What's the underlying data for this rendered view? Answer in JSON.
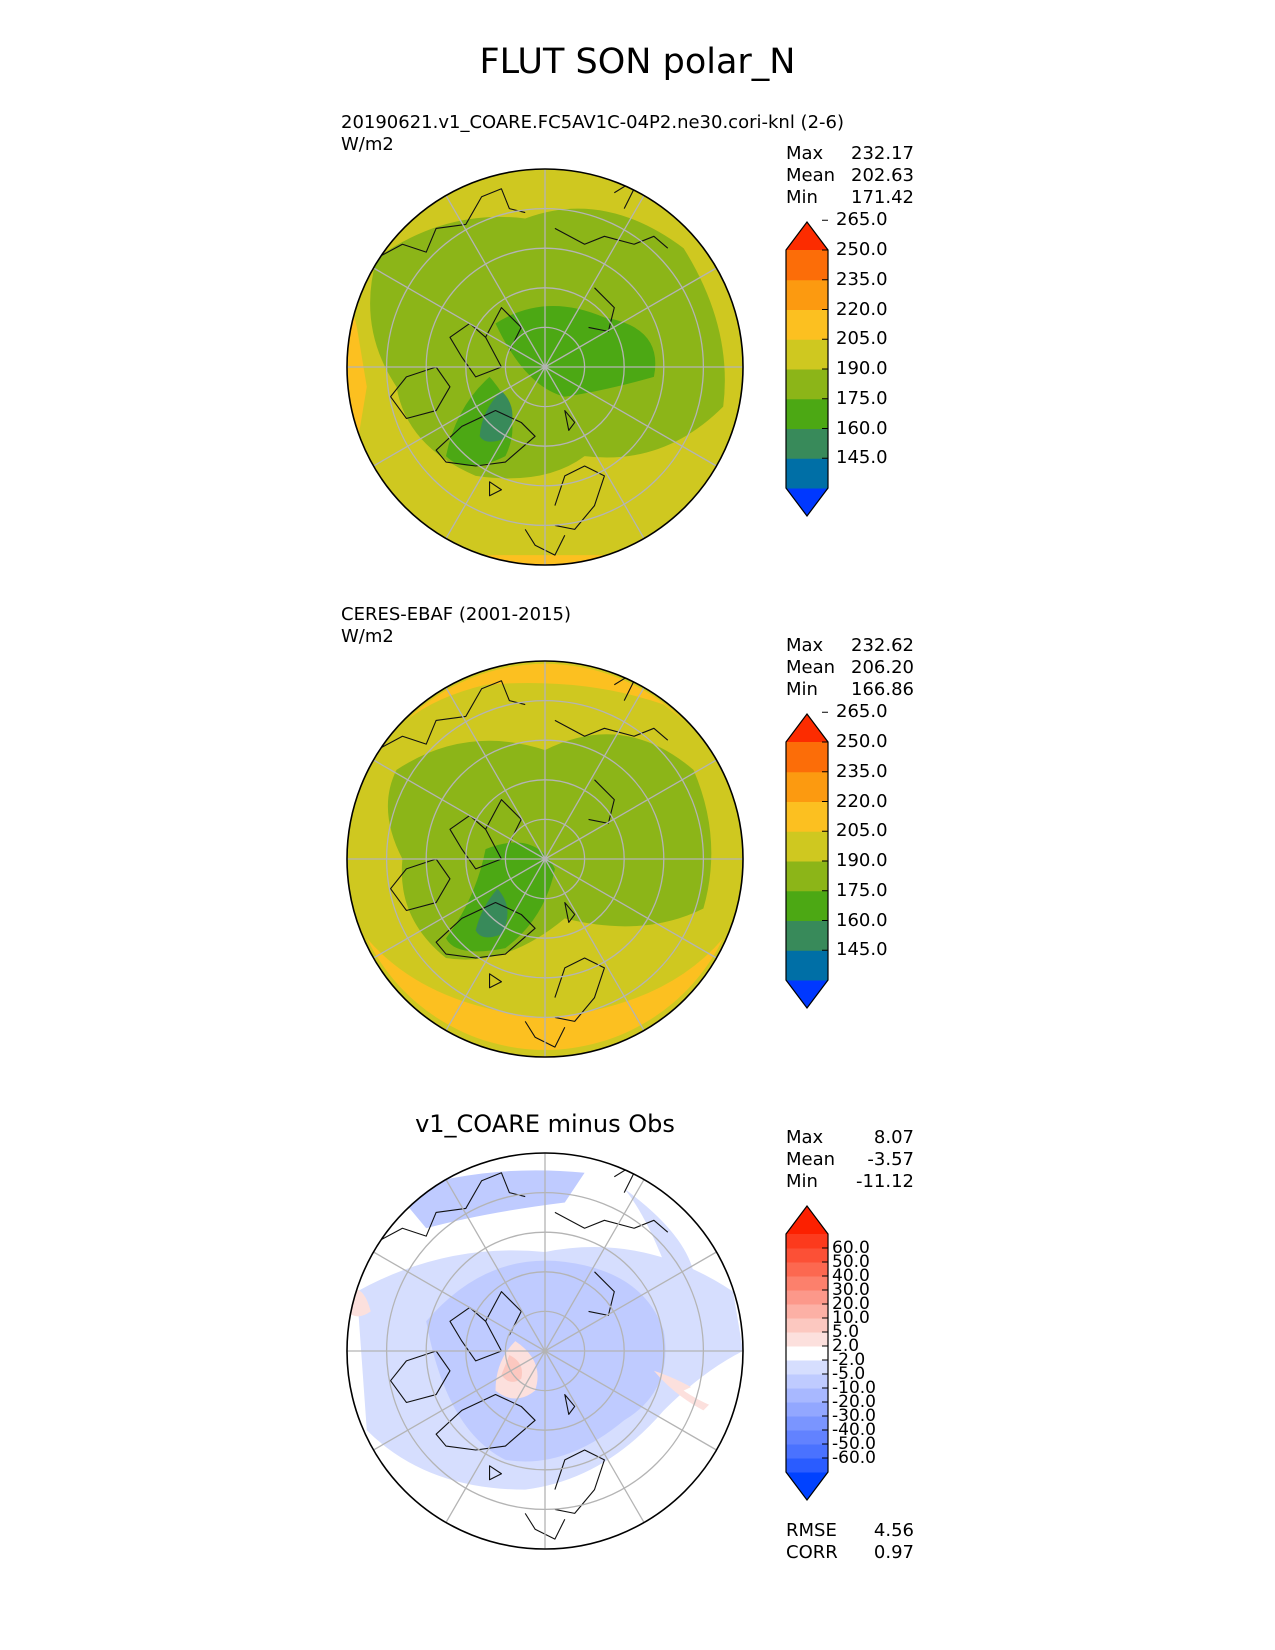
{
  "title": "FLUT SON polar_N",
  "colors": {
    "test_levels": [
      "#0038ff",
      "#006fa6",
      "#388a5a",
      "#4ca814",
      "#8cb518",
      "#cfc820",
      "#fcc020",
      "#fc9a10",
      "#fc6d08",
      "#fc2c00"
    ],
    "diff_levels": [
      "#0042ff",
      "#2a5cff",
      "#4a72ff",
      "#6282ff",
      "#7a95ff",
      "#92a7ff",
      "#a8b8ff",
      "#bfcbff",
      "#d6defe",
      "#ffffff",
      "#fce0dd",
      "#fcc8c0",
      "#fcb0a5",
      "#fc988a",
      "#fc806c",
      "#fc6850",
      "#fc5036",
      "#fc3a1d",
      "#fc2000"
    ],
    "grid": "#b4b4b4",
    "coast": "#111111"
  },
  "panels": [
    {
      "kind": "test",
      "label_line1": "20190621.v1_COARE.FC5AV1C-04P2.ne30.cori-knl (2-6)",
      "label_line2": "W/m2",
      "stats": [
        {
          "name": "Max",
          "value": "232.17"
        },
        {
          "name": "Mean",
          "value": "202.63"
        },
        {
          "name": "Min",
          "value": "171.42"
        }
      ],
      "ticks": [
        "145.0",
        "160.0",
        "175.0",
        "190.0",
        "205.0",
        "220.0",
        "235.0",
        "250.0",
        "265.0"
      ]
    },
    {
      "kind": "ref",
      "label_line1": "CERES-EBAF (2001-2015)",
      "label_line2": "W/m2",
      "stats": [
        {
          "name": "Max",
          "value": "232.62"
        },
        {
          "name": "Mean",
          "value": "206.20"
        },
        {
          "name": "Min",
          "value": "166.86"
        }
      ],
      "ticks": [
        "145.0",
        "160.0",
        "175.0",
        "190.0",
        "205.0",
        "220.0",
        "235.0",
        "250.0",
        "265.0"
      ]
    },
    {
      "kind": "diff",
      "title": "v1_COARE minus Obs",
      "stats": [
        {
          "name": "Max",
          "value": "8.07"
        },
        {
          "name": "Mean",
          "value": "-3.57"
        },
        {
          "name": "Min",
          "value": "-11.12"
        }
      ],
      "ticks": [
        "-60.0",
        "-50.0",
        "-40.0",
        "-30.0",
        "-20.0",
        "-10.0",
        "-5.0",
        "-2.0",
        "2.0",
        "5.0",
        "10.0",
        "20.0",
        "30.0",
        "40.0",
        "50.0",
        "60.0"
      ],
      "metrics": [
        {
          "name": "RMSE",
          "value": "4.56"
        },
        {
          "name": "CORR",
          "value": "0.97"
        }
      ]
    }
  ],
  "chart_data": [
    {
      "type": "heatmap",
      "projection": "north polar stereographic",
      "title": "20190621.v1_COARE.FC5AV1C-04P2.ne30.cori-knl (2-6)",
      "units": "W/m2",
      "colorbar_levels": [
        145,
        160,
        175,
        190,
        205,
        220,
        235,
        250,
        265
      ],
      "colorbar_extend": "both",
      "max": 232.17,
      "mean": 202.63,
      "min": 171.42
    },
    {
      "type": "heatmap",
      "projection": "north polar stereographic",
      "title": "CERES-EBAF (2001-2015)",
      "units": "W/m2",
      "colorbar_levels": [
        145,
        160,
        175,
        190,
        205,
        220,
        235,
        250,
        265
      ],
      "colorbar_extend": "both",
      "max": 232.62,
      "mean": 206.2,
      "min": 166.86
    },
    {
      "type": "heatmap",
      "projection": "north polar stereographic",
      "title": "v1_COARE minus Obs",
      "colorbar_levels": [
        -60,
        -50,
        -40,
        -30,
        -20,
        -10,
        -5,
        -2,
        2,
        5,
        10,
        20,
        30,
        40,
        50,
        60
      ],
      "colorbar_extend": "both",
      "max": 8.07,
      "mean": -3.57,
      "min": -11.12,
      "rmse": 4.56,
      "corr": 0.97
    }
  ]
}
